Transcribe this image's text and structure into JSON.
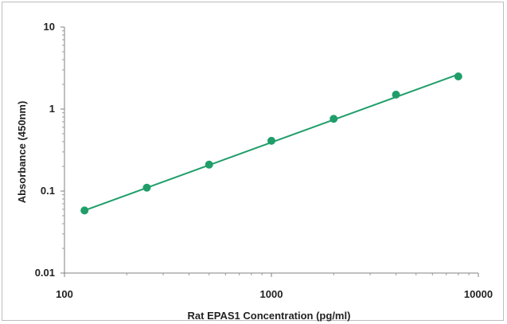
{
  "chart_data": {
    "type": "scatter",
    "title": "",
    "xlabel": "Rat EPAS1  Concentration (pg/ml)",
    "ylabel": "Absorbance (450nm)",
    "x_scale": "log",
    "y_scale": "log",
    "xlim": [
      100,
      10000
    ],
    "ylim": [
      0.01,
      10
    ],
    "x_ticks": [
      100,
      1000,
      10000
    ],
    "x_tick_labels": [
      "100",
      "1000",
      "10000"
    ],
    "y_ticks": [
      0.01,
      0.1,
      1,
      10
    ],
    "y_tick_labels": [
      "0.01",
      "0.1",
      "1",
      "10"
    ],
    "grid": false,
    "legend": "none",
    "series": [
      {
        "x": [
          125,
          250,
          500,
          1000,
          2000,
          4000,
          8000
        ],
        "y": [
          0.058,
          0.11,
          0.21,
          0.41,
          0.76,
          1.5,
          2.5
        ],
        "color": "#1f9e6a",
        "trendline": {
          "type": "power",
          "x": [
            125,
            8000
          ],
          "y": [
            0.058,
            2.65
          ]
        }
      }
    ]
  }
}
